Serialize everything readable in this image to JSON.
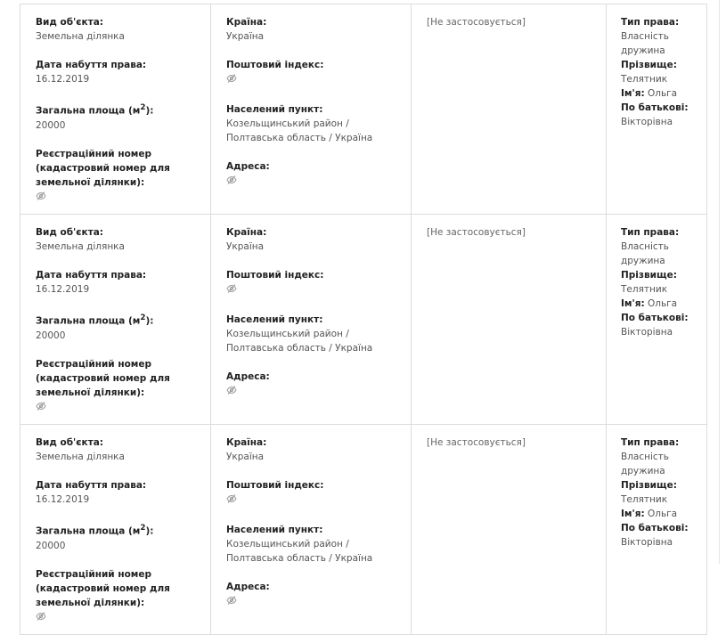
{
  "labels": {
    "object_type": "Вид об'єкта:",
    "acquire_date": "Дата набуття права:",
    "area": "Загальна площа (м",
    "area_sup": "2",
    "area_end": "):",
    "reg_number": "Реєстраційний номер (кадастровий номер для земельної ділянки):",
    "country": "Країна:",
    "postcode": "Поштовий індекс:",
    "locality": "Населений пункт:",
    "address": "Адреса:",
    "right_type": "Тип права:",
    "surname": "Прізвище:",
    "name": "Ім'я:",
    "patronymic": "По батькові:"
  },
  "hidden_icon": "eye-slash-icon",
  "rows": [
    {
      "object_type": "Земельна ділянка",
      "acquire_date": "16.12.2019",
      "area": "20000",
      "country": "Україна",
      "locality": "Козельщинський район / Полтавська область / Україна",
      "not_applicable": "[Не застосовується]",
      "right_type": "Власність дружина",
      "surname": "Телятник",
      "name": "Ольга",
      "patronymic": "Вікторівна"
    },
    {
      "object_type": "Земельна ділянка",
      "acquire_date": "16.12.2019",
      "area": "20000",
      "country": "Україна",
      "locality": "Козельщинський район / Полтавська область / Україна",
      "not_applicable": "[Не застосовується]",
      "right_type": "Власність дружина",
      "surname": "Телятник",
      "name": "Ольга",
      "patronymic": "Вікторівна"
    },
    {
      "object_type": "Земельна ділянка",
      "acquire_date": "16.12.2019",
      "area": "20000",
      "country": "Україна",
      "locality": "Козельщинський район / Полтавська область / Україна",
      "not_applicable": "[Не застосовується]",
      "right_type": "Власність дружина",
      "surname": "Телятник",
      "name": "Ольга",
      "patronymic": "Вікторівна"
    }
  ]
}
